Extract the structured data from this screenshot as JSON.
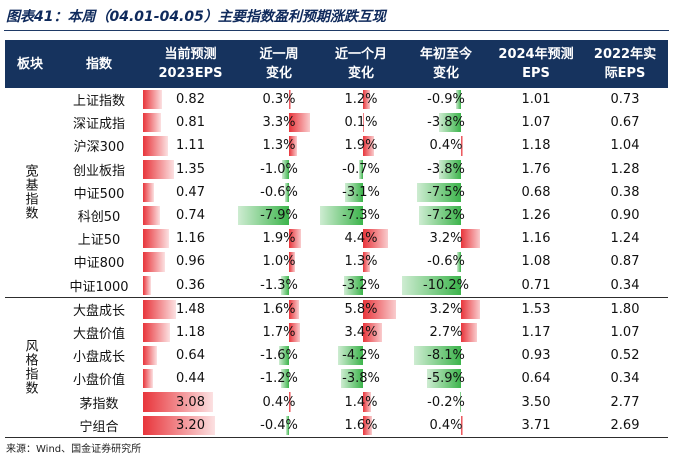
{
  "title": "图表41：本周（04.01-04.05）主要指数盈利预期涨跌互现",
  "source": "来源：Wind、国金证券研究所",
  "colors": {
    "header_bg": "#16335e",
    "positive": "#e8353b",
    "negative": "#3cb44b"
  },
  "headers": [
    "板块",
    "指数",
    "当前预测\n2023EPS",
    "近一周\n变化",
    "近一个月\n变化",
    "年初至今\n变化",
    "2024年预测\nEPS",
    "2022年实\n际EPS"
  ],
  "groups": [
    {
      "name": "宽基指数",
      "rows": [
        {
          "name": "上证指数",
          "eps2023": "0.82",
          "week": "0.3%",
          "month": "1.2%",
          "ytd": "-0.9%",
          "eps2024": "1.01",
          "eps2022": "0.73"
        },
        {
          "name": "深证成指",
          "eps2023": "0.81",
          "week": "3.3%",
          "month": "0.1%",
          "ytd": "-3.8%",
          "eps2024": "1.07",
          "eps2022": "0.67"
        },
        {
          "name": "沪深300",
          "eps2023": "1.11",
          "week": "1.3%",
          "month": "1.9%",
          "ytd": "0.4%",
          "eps2024": "1.18",
          "eps2022": "1.04"
        },
        {
          "name": "创业板指",
          "eps2023": "1.35",
          "week": "-1.0%",
          "month": "-0.7%",
          "ytd": "-3.8%",
          "eps2024": "1.76",
          "eps2022": "1.28"
        },
        {
          "name": "中证500",
          "eps2023": "0.47",
          "week": "-0.6%",
          "month": "-3.1%",
          "ytd": "-7.5%",
          "eps2024": "0.68",
          "eps2022": "0.38"
        },
        {
          "name": "科创50",
          "eps2023": "0.74",
          "week": "-7.9%",
          "month": "-7.3%",
          "ytd": "-7.2%",
          "eps2024": "1.26",
          "eps2022": "0.90"
        },
        {
          "name": "上证50",
          "eps2023": "1.16",
          "week": "1.9%",
          "month": "4.4%",
          "ytd": "3.2%",
          "eps2024": "1.16",
          "eps2022": "1.24"
        },
        {
          "name": "中证800",
          "eps2023": "0.96",
          "week": "1.0%",
          "month": "1.3%",
          "ytd": "-0.6%",
          "eps2024": "1.08",
          "eps2022": "0.87"
        },
        {
          "name": "中证1000",
          "eps2023": "0.36",
          "week": "-1.3%",
          "month": "-3.2%",
          "ytd": "-10.2%",
          "eps2024": "0.71",
          "eps2022": "0.34"
        }
      ]
    },
    {
      "name": "风格指数",
      "rows": [
        {
          "name": "大盘成长",
          "eps2023": "1.48",
          "week": "1.6%",
          "month": "5.8%",
          "ytd": "3.2%",
          "eps2024": "1.53",
          "eps2022": "1.80"
        },
        {
          "name": "大盘价值",
          "eps2023": "1.18",
          "week": "1.7%",
          "month": "3.4%",
          "ytd": "2.7%",
          "eps2024": "1.17",
          "eps2022": "1.07"
        },
        {
          "name": "小盘成长",
          "eps2023": "0.64",
          "week": "-1.6%",
          "month": "-4.2%",
          "ytd": "-8.1%",
          "eps2024": "0.93",
          "eps2022": "0.52"
        },
        {
          "name": "小盘价值",
          "eps2023": "0.44",
          "week": "-1.2%",
          "month": "-3.8%",
          "ytd": "-5.9%",
          "eps2024": "0.64",
          "eps2022": "0.34"
        },
        {
          "name": "茅指数",
          "eps2023": "3.08",
          "week": "0.4%",
          "month": "1.4%",
          "ytd": "-0.2%",
          "eps2024": "3.50",
          "eps2022": "2.77"
        },
        {
          "name": "宁组合",
          "eps2023": "3.20",
          "week": "-0.4%",
          "month": "1.6%",
          "ytd": "0.4%",
          "eps2024": "3.71",
          "eps2022": "2.69"
        }
      ]
    }
  ]
}
